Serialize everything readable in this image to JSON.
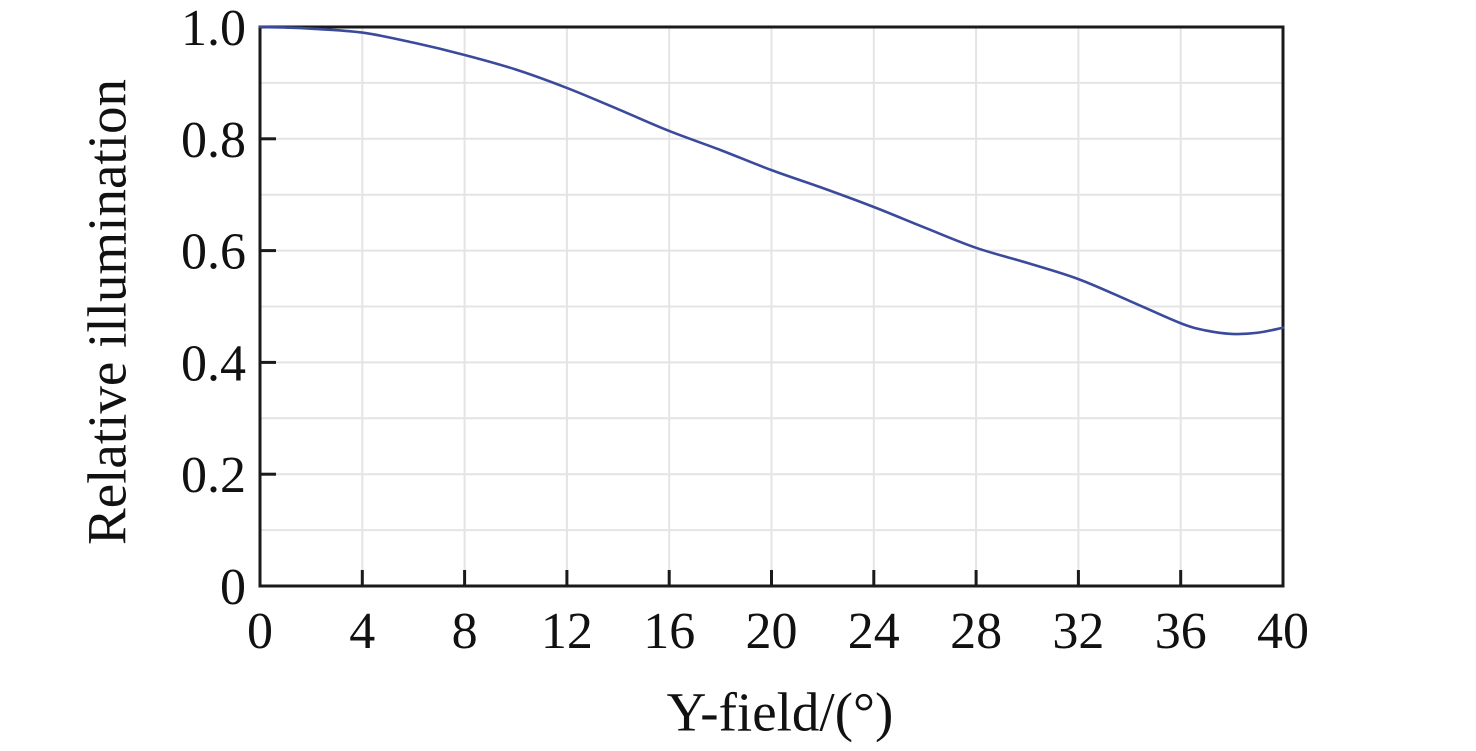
{
  "chart_data": {
    "type": "line",
    "title": "",
    "xlabel": "Y-field/(°)",
    "ylabel": "Relative illumination",
    "xlim": [
      0,
      40
    ],
    "ylim": [
      0,
      1.0
    ],
    "x_ticks": [
      0,
      4,
      8,
      12,
      16,
      20,
      24,
      28,
      32,
      36,
      40
    ],
    "x_tick_labels": [
      "0",
      "4",
      "8",
      "12",
      "16",
      "20",
      "24",
      "28",
      "32",
      "36",
      "40"
    ],
    "y_ticks": [
      0,
      0.2,
      0.4,
      0.6,
      0.8,
      1.0
    ],
    "y_tick_labels": [
      "0",
      "0.2",
      "0.4",
      "0.6",
      "0.8",
      "1.0"
    ],
    "x_grid_step": 4,
    "y_grid_step": 0.1,
    "grid": true,
    "legend": "none",
    "series": [
      {
        "name": "Relative illumination vs Y-field",
        "color": "#3b4b9b",
        "x": [
          0,
          1,
          2,
          4,
          6,
          8,
          10,
          12,
          14,
          16,
          18,
          20,
          22,
          24,
          26,
          28,
          30,
          32,
          34,
          36,
          37,
          38,
          39,
          40
        ],
        "y": [
          1.0,
          0.999,
          0.997,
          0.99,
          0.972,
          0.95,
          0.924,
          0.891,
          0.853,
          0.814,
          0.78,
          0.744,
          0.712,
          0.678,
          0.641,
          0.605,
          0.578,
          0.549,
          0.51,
          0.47,
          0.457,
          0.451,
          0.453,
          0.462
        ]
      }
    ],
    "colors": {
      "axis": "#1a1a1a",
      "grid": "#e4e4e4",
      "text": "#111111",
      "background": "#ffffff"
    }
  },
  "layout_note": ""
}
